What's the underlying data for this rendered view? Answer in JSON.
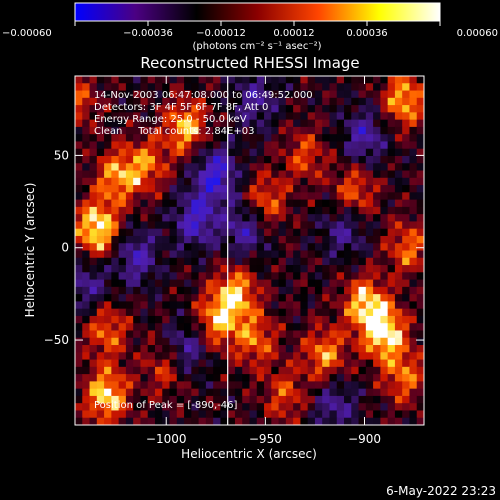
{
  "chart_data": {
    "type": "heatmap",
    "title": "Reconstructed RHESSI Image",
    "xlabel": "Heliocentric X (arcsec)",
    "ylabel": "Heliocentric Y (arcsec)",
    "xlim": [
      -1046,
      -870
    ],
    "ylim": [
      -96,
      93
    ],
    "x_ticks": [
      -1000,
      -950,
      -900
    ],
    "x_tick_labels": [
      "−1000",
      "−950",
      "−900"
    ],
    "y_ticks": [
      -50,
      0,
      50
    ],
    "y_tick_labels": [
      "−50",
      "0",
      "50"
    ],
    "colorbar": {
      "range": [
        -0.0006,
        0.0006
      ],
      "ticks": [
        -0.0006,
        -0.00036,
        -0.00012,
        0.00012,
        0.00036,
        0.0006
      ],
      "tick_labels": [
        "−0.00060",
        "−0.00036",
        "−0.00012",
        "0.00012",
        "0.00036",
        "0.00060"
      ],
      "unit_label": "(photons cm⁻² s⁻¹ asec⁻²)",
      "colors": [
        "#0000ff",
        "#4b0082",
        "#000000",
        "#8b0000",
        "#ff4500",
        "#ffff00",
        "#ffffff"
      ]
    },
    "annotations": [
      "14-Nov-2003 06:47:08.000 to 06:49:52.000",
      "Detectors: 3F 4F 5F 6F 7F 8F, Att 0",
      "Energy Range: 25.0 - 50.0 keV",
      "Clean     Total counts: 2.84E+03"
    ],
    "peak_label": "Position of Peak = [-890,-46]",
    "peak": {
      "x": -890,
      "y": -46
    },
    "vertical_line_x": -969,
    "grid": false,
    "hot_spots": [
      {
        "x": -1035,
        "y": 10,
        "v": 1.0
      },
      {
        "x": -1025,
        "y": 38,
        "v": 0.7
      },
      {
        "x": -990,
        "y": 65,
        "v": 0.8
      },
      {
        "x": -1010,
        "y": 45,
        "v": 0.6
      },
      {
        "x": -965,
        "y": -25,
        "v": 0.8
      },
      {
        "x": -975,
        "y": -40,
        "v": 0.7
      },
      {
        "x": -955,
        "y": -50,
        "v": 0.6
      },
      {
        "x": -890,
        "y": -46,
        "v": 1.0
      },
      {
        "x": -900,
        "y": -30,
        "v": 0.8
      },
      {
        "x": -920,
        "y": -58,
        "v": 0.7
      },
      {
        "x": -880,
        "y": 80,
        "v": 0.8
      },
      {
        "x": -878,
        "y": 0,
        "v": 0.6
      },
      {
        "x": -1030,
        "y": -80,
        "v": 0.9
      },
      {
        "x": -1030,
        "y": -45,
        "v": 0.6
      },
      {
        "x": -950,
        "y": 25,
        "v": 0.6
      },
      {
        "x": -930,
        "y": 50,
        "v": 0.5
      },
      {
        "x": -905,
        "y": 30,
        "v": 0.6
      },
      {
        "x": -940,
        "y": -80,
        "v": 0.5
      },
      {
        "x": -880,
        "y": -70,
        "v": 0.6
      },
      {
        "x": -1045,
        "y": 80,
        "v": 0.5
      },
      {
        "x": -1000,
        "y": -65,
        "v": 0.5
      }
    ],
    "cold_spots": [
      {
        "x": -975,
        "y": 40,
        "v": -0.8
      },
      {
        "x": -985,
        "y": 15,
        "v": -0.7
      },
      {
        "x": -960,
        "y": 10,
        "v": -0.6
      },
      {
        "x": -1015,
        "y": -5,
        "v": -0.6
      },
      {
        "x": -990,
        "y": -55,
        "v": -0.6
      },
      {
        "x": -900,
        "y": 60,
        "v": -0.6
      },
      {
        "x": -955,
        "y": 80,
        "v": -0.5
      },
      {
        "x": -915,
        "y": -85,
        "v": -0.5
      },
      {
        "x": -910,
        "y": 10,
        "v": -0.5
      },
      {
        "x": -1040,
        "y": -20,
        "v": -0.5
      }
    ]
  },
  "footer": {
    "timestamp": "6-May-2022 23:23"
  }
}
